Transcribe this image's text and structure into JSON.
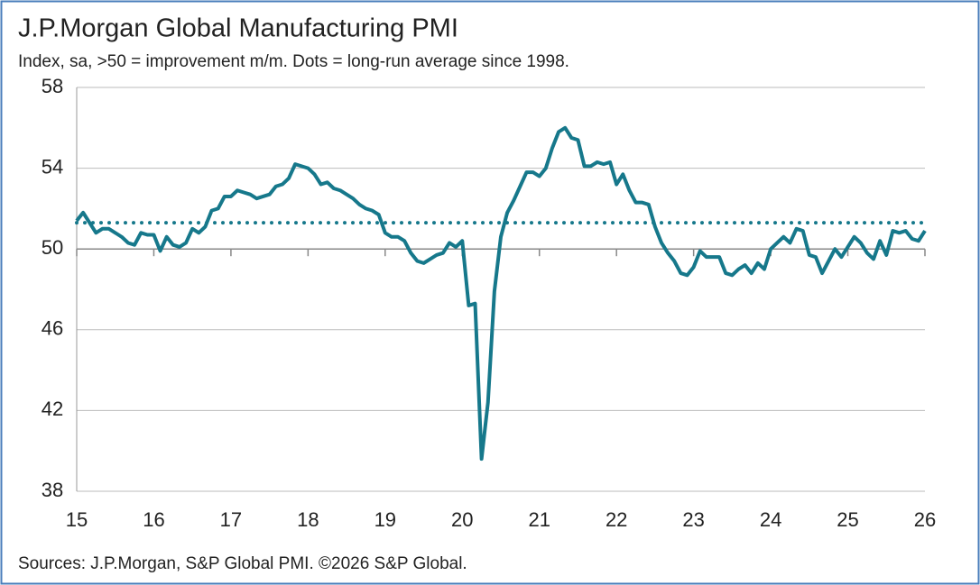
{
  "chart_data": {
    "type": "line",
    "title": "J.P.Morgan Global Manufacturing PMI",
    "subtitle": "Index, sa, >50 = improvement m/m. Dots = long-run average since 1998.",
    "source": "Sources: J.P.Morgan, S&P Global PMI. ©2026 S&P Global.",
    "categories": [
      "15",
      null,
      null,
      null,
      null,
      null,
      null,
      null,
      null,
      null,
      null,
      null,
      "16",
      null,
      null,
      null,
      null,
      null,
      null,
      null,
      null,
      null,
      null,
      null,
      "17",
      null,
      null,
      null,
      null,
      null,
      null,
      null,
      null,
      null,
      null,
      null,
      "18",
      null,
      null,
      null,
      null,
      null,
      null,
      null,
      null,
      null,
      null,
      null,
      "19",
      null,
      null,
      null,
      null,
      null,
      null,
      null,
      null,
      null,
      null,
      null,
      "20",
      null,
      null,
      null,
      null,
      null,
      null,
      null,
      null,
      null,
      null,
      null,
      "21",
      null,
      null,
      null,
      null,
      null,
      null,
      null,
      null,
      null,
      null,
      null,
      "22",
      null,
      null,
      null,
      null,
      null,
      null,
      null,
      null,
      null,
      null,
      null,
      "23",
      null,
      null,
      null,
      null,
      null,
      null,
      null,
      null,
      null,
      null,
      null,
      "24",
      null,
      null,
      null,
      null,
      null,
      null,
      null,
      null,
      null,
      null,
      null,
      "25",
      null,
      null,
      null,
      null,
      null,
      null,
      null,
      null,
      null,
      null,
      null,
      "26"
    ],
    "series": [
      {
        "color": "#16788b",
        "values": [
          51.4,
          51.8,
          51.3,
          50.8,
          51.0,
          51.0,
          50.8,
          50.6,
          50.3,
          50.2,
          50.8,
          50.7,
          50.7,
          49.9,
          50.6,
          50.2,
          50.1,
          50.3,
          51.0,
          50.8,
          51.1,
          51.9,
          52.0,
          52.6,
          52.6,
          52.9,
          52.8,
          52.7,
          52.5,
          52.6,
          52.7,
          53.1,
          53.2,
          53.5,
          54.2,
          54.1,
          54.0,
          53.7,
          53.2,
          53.3,
          53.0,
          52.9,
          52.7,
          52.5,
          52.2,
          52.0,
          51.9,
          51.7,
          50.8,
          50.6,
          50.6,
          50.4,
          49.8,
          49.4,
          49.3,
          49.5,
          49.7,
          49.8,
          50.3,
          50.1,
          50.4,
          47.2,
          47.3,
          39.6,
          42.4,
          47.9,
          50.6,
          51.8,
          52.4,
          53.1,
          53.8,
          53.8,
          53.6,
          54.0,
          55.0,
          55.8,
          56.0,
          55.5,
          55.4,
          54.1,
          54.1,
          54.3,
          54.2,
          54.3,
          53.2,
          53.7,
          52.9,
          52.3,
          52.3,
          52.2,
          51.1,
          50.3,
          49.8,
          49.4,
          48.8,
          48.7,
          49.1,
          49.9,
          49.6,
          49.6,
          49.6,
          48.8,
          48.7,
          49.0,
          49.2,
          48.8,
          49.3,
          49.0,
          50.0,
          50.3,
          50.6,
          50.3,
          51.0,
          50.9,
          49.7,
          49.6,
          48.8,
          49.4,
          50.0,
          49.6,
          50.1,
          50.6,
          50.3,
          49.8,
          49.5,
          50.4,
          49.7,
          50.9,
          50.8,
          50.9,
          50.5,
          50.4,
          50.9
        ]
      }
    ],
    "long_run_average": 51.3,
    "axis_crossing": 50,
    "ylim": [
      38,
      58
    ],
    "yticks": [
      38,
      42,
      46,
      50,
      54,
      58
    ],
    "grid": true
  }
}
